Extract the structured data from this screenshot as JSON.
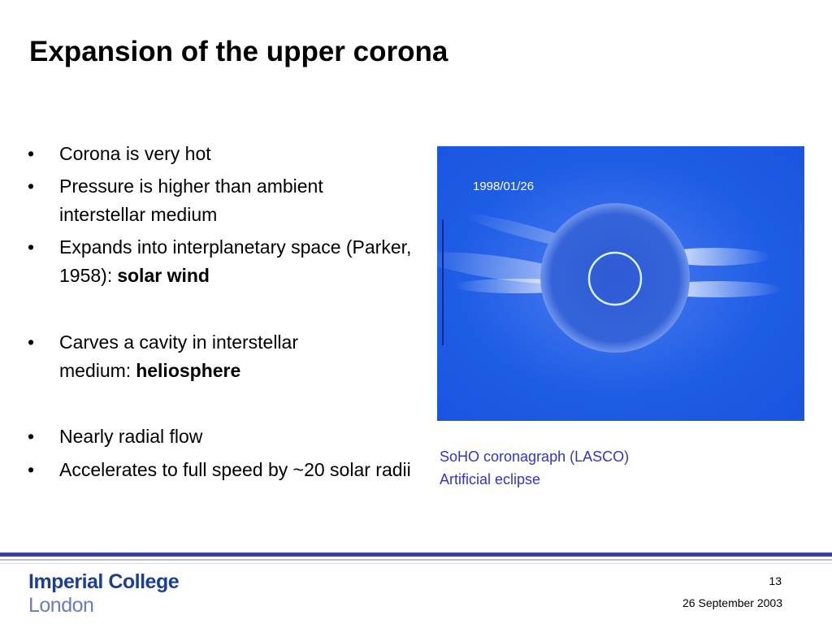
{
  "title": "Expansion of the upper corona",
  "bullets": [
    {
      "text": "Corona is very hot"
    },
    {
      "text": "Pressure is higher than ambient interstellar medium"
    },
    {
      "text": "Expands into interplanetary space (Parker, 1958):",
      "bold": "solar wind"
    },
    {
      "text": "Carves a cavity in interstellar medium:",
      "bold": "heliosphere"
    },
    {
      "text": "Nearly radial flow"
    },
    {
      "text": "Accelerates to full speed by ~20 solar radii"
    }
  ],
  "image": {
    "timestamp": "1998/01/26"
  },
  "caption": [
    "SoHO coronagraph (LASCO)",
    "Artificial eclipse"
  ],
  "footer": {
    "logo": [
      "Imperial College",
      "London"
    ],
    "page_number": "13",
    "date": "26 September 2003"
  }
}
